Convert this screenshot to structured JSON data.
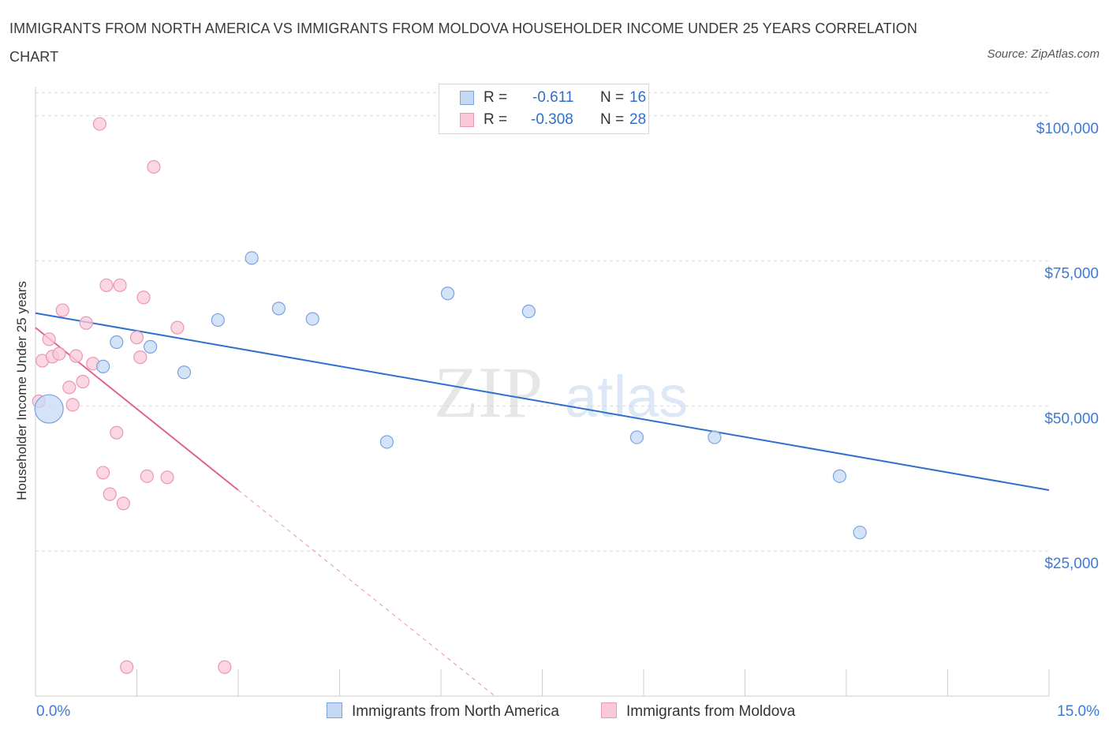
{
  "title": "IMMIGRANTS FROM NORTH AMERICA VS IMMIGRANTS FROM MOLDOVA HOUSEHOLDER INCOME UNDER 25 YEARS CORRELATION CHART",
  "source": "Source: ZipAtlas.com",
  "watermark": {
    "zip": "ZIP",
    "atlas": "atlas"
  },
  "colors": {
    "blue": "#2e6fcc",
    "blue_fill": "#c5d9f5",
    "pink": "#e0648f",
    "pink_fill": "#f9c9d8",
    "tick_text": "#3d7ad6",
    "grid": "#d9d9d9"
  },
  "legend": {
    "rows": [
      {
        "r_label": "R =",
        "r_value": "-0.611",
        "n_label": "N =",
        "n_value": "16"
      },
      {
        "r_label": "R =",
        "r_value": "-0.308",
        "n_label": "N =",
        "n_value": "28"
      }
    ]
  },
  "bottom_legend": {
    "north_america": "Immigrants from North America",
    "moldova": "Immigrants from Moldova"
  },
  "chart_data": {
    "type": "scatter",
    "title": "IMMIGRANTS FROM NORTH AMERICA VS IMMIGRANTS FROM MOLDOVA HOUSEHOLDER INCOME UNDER 25 YEARS CORRELATION CHART",
    "xlabel": "",
    "ylabel": "Householder Income Under 25 years",
    "xlim": [
      0,
      15
    ],
    "ylim": [
      0,
      105000
    ],
    "x_tick_labels": [
      "0.0%",
      "15.0%"
    ],
    "y_ticks": [
      25000,
      50000,
      75000,
      100000
    ],
    "y_tick_labels": [
      "$25,000",
      "$50,000",
      "$75,000",
      "$100,000"
    ],
    "grid": true,
    "legend_position": "top-center",
    "series": [
      {
        "name": "Immigrants from North America",
        "color": "#2e6fcc",
        "r": -0.611,
        "n": 16,
        "points": [
          [
            0.2,
            49500,
            "large"
          ],
          [
            1.0,
            56800
          ],
          [
            1.2,
            61000
          ],
          [
            1.7,
            60200
          ],
          [
            2.2,
            55800
          ],
          [
            2.7,
            64800
          ],
          [
            3.2,
            75500
          ],
          [
            3.6,
            66800
          ],
          [
            4.1,
            65000
          ],
          [
            5.2,
            43800
          ],
          [
            6.1,
            69400
          ],
          [
            7.3,
            66300
          ],
          [
            8.9,
            44600
          ],
          [
            10.05,
            44600
          ],
          [
            11.9,
            37900
          ],
          [
            12.2,
            28200
          ]
        ],
        "trend": {
          "x_start": 0.0,
          "y_start": 66000,
          "x_end": 15.0,
          "y_end": 35500
        }
      },
      {
        "name": "Immigrants from Moldova",
        "color": "#e0648f",
        "r": -0.308,
        "n": 28,
        "points": [
          [
            0.05,
            50800
          ],
          [
            0.1,
            57800
          ],
          [
            0.2,
            61500
          ],
          [
            0.25,
            58500
          ],
          [
            0.35,
            59000
          ],
          [
            0.4,
            66500
          ],
          [
            0.5,
            53200
          ],
          [
            0.55,
            50200
          ],
          [
            0.6,
            58600
          ],
          [
            0.7,
            54200
          ],
          [
            0.75,
            64300
          ],
          [
            0.85,
            57300
          ],
          [
            0.95,
            98600
          ],
          [
            1.0,
            38500
          ],
          [
            1.05,
            70800
          ],
          [
            1.1,
            34800
          ],
          [
            1.2,
            45400
          ],
          [
            1.25,
            70800
          ],
          [
            1.3,
            33200
          ],
          [
            1.35,
            5000
          ],
          [
            1.5,
            61800
          ],
          [
            1.55,
            58400
          ],
          [
            1.6,
            68700
          ],
          [
            1.65,
            37900
          ],
          [
            1.75,
            91200
          ],
          [
            1.95,
            37700
          ],
          [
            2.1,
            63500
          ],
          [
            2.8,
            5000
          ]
        ],
        "trend": {
          "x_start": 0.0,
          "y_start": 63500,
          "x_end": 3.0,
          "y_end": 35500
        },
        "trend_extension": {
          "x_start": 3.0,
          "y_start": 35500,
          "x_end": 6.8,
          "y_end": 0
        }
      }
    ]
  }
}
